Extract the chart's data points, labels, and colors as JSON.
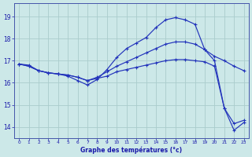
{
  "xlabel": "Graphe des températures (°c)",
  "bg_color": "#cce8e8",
  "grid_color": "#aacccc",
  "line_color": "#2233bb",
  "xlim": [
    -0.5,
    23.5
  ],
  "ylim": [
    13.5,
    19.6
  ],
  "yticks": [
    14,
    15,
    16,
    17,
    18,
    19
  ],
  "xticks": [
    0,
    1,
    2,
    3,
    4,
    5,
    6,
    7,
    8,
    9,
    10,
    11,
    12,
    13,
    14,
    15,
    16,
    17,
    18,
    19,
    20,
    21,
    22,
    23
  ],
  "curve1_x": [
    0,
    1,
    2,
    3,
    4,
    5,
    6,
    7,
    8,
    9,
    10,
    11,
    12,
    13,
    14,
    15,
    16,
    17,
    18,
    19,
    20,
    21,
    22,
    23
  ],
  "curve1_y": [
    16.85,
    16.8,
    16.55,
    16.45,
    16.4,
    16.3,
    16.1,
    15.9,
    16.15,
    16.6,
    17.15,
    17.55,
    17.8,
    18.05,
    18.5,
    18.85,
    18.95,
    18.85,
    18.65,
    17.5,
    17.0,
    14.85,
    13.85,
    14.2
  ],
  "curve2_x": [
    0,
    1,
    2,
    3,
    4,
    5,
    6,
    7,
    8,
    9,
    10,
    11,
    12,
    13,
    14,
    15,
    16,
    17,
    18,
    19,
    20,
    21,
    22,
    23
  ],
  "curve2_y": [
    16.85,
    16.75,
    16.55,
    16.45,
    16.4,
    16.35,
    16.25,
    16.1,
    16.25,
    16.5,
    16.75,
    16.95,
    17.15,
    17.35,
    17.55,
    17.75,
    17.85,
    17.85,
    17.75,
    17.5,
    17.2,
    17.0,
    16.75,
    16.55
  ],
  "curve3_x": [
    0,
    1,
    2,
    3,
    4,
    5,
    6,
    7,
    8,
    9,
    10,
    11,
    12,
    13,
    14,
    15,
    16,
    17,
    18,
    19,
    20,
    21,
    22,
    23
  ],
  "curve3_y": [
    16.85,
    16.75,
    16.55,
    16.45,
    16.4,
    16.35,
    16.25,
    16.1,
    16.2,
    16.3,
    16.5,
    16.6,
    16.7,
    16.8,
    16.9,
    17.0,
    17.05,
    17.05,
    17.0,
    16.95,
    16.75,
    14.85,
    14.15,
    14.3
  ]
}
